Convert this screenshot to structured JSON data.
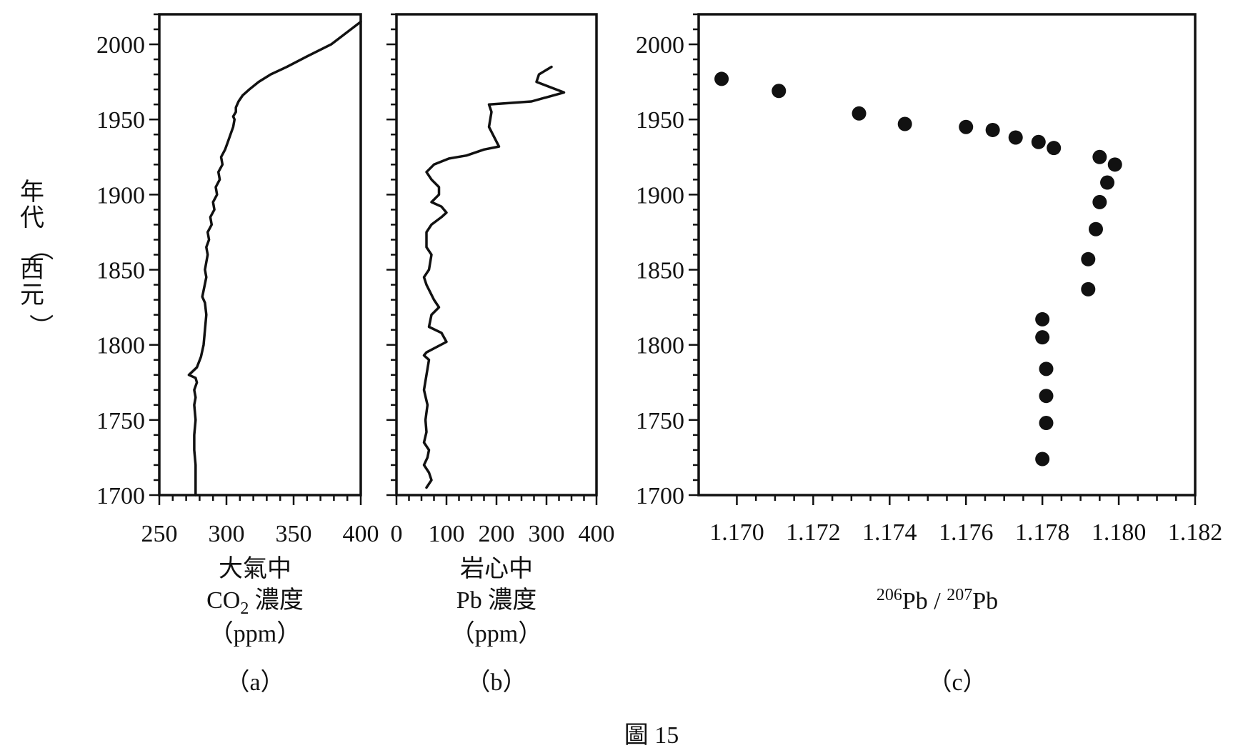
{
  "y_axis_label": "年代（西元）",
  "figure_caption": "圖 15",
  "year_ticks": [
    "1700",
    "1750",
    "1800",
    "1850",
    "1900",
    "1950",
    "2000"
  ],
  "chart_data": [
    {
      "type": "line",
      "panel_label": "（a）",
      "xlabel_lines": [
        "大氣中",
        "CO2 濃度",
        "（ppm）"
      ],
      "xlim": [
        250,
        400
      ],
      "x_ticks": [
        250,
        300,
        350,
        400
      ],
      "x_tick_labels": [
        "250",
        "300",
        "350",
        "400"
      ],
      "ylim": [
        1700,
        2020
      ],
      "grid": false,
      "series": [
        {
          "x": [
            277,
            277,
            276,
            276,
            277,
            276,
            277,
            276,
            278,
            277,
            272,
            278,
            281,
            283,
            284,
            285,
            284,
            282,
            285,
            284,
            286,
            285,
            287,
            286,
            289,
            288,
            291,
            290,
            293,
            292,
            295,
            294,
            297,
            296,
            299,
            301,
            303,
            305,
            306,
            305,
            307,
            307,
            309,
            312,
            317,
            324,
            333,
            345,
            360,
            378,
            400
          ],
          "y": [
            1700,
            1720,
            1730,
            1740,
            1750,
            1760,
            1765,
            1770,
            1775,
            1778,
            1780,
            1785,
            1792,
            1800,
            1810,
            1820,
            1828,
            1832,
            1845,
            1850,
            1860,
            1865,
            1870,
            1875,
            1880,
            1885,
            1890,
            1895,
            1900,
            1905,
            1910,
            1915,
            1920,
            1925,
            1930,
            1935,
            1940,
            1945,
            1950,
            1952,
            1955,
            1958,
            1962,
            1966,
            1970,
            1975,
            1980,
            1985,
            1992,
            2000,
            2015
          ]
        }
      ]
    },
    {
      "type": "line",
      "panel_label": "（b）",
      "xlabel_lines": [
        "岩心中",
        "Pb 濃度",
        "（ppm）"
      ],
      "xlim": [
        0,
        400
      ],
      "x_ticks": [
        0,
        100,
        200,
        300,
        400
      ],
      "x_tick_labels": [
        "0",
        "100",
        "200",
        "300",
        "400"
      ],
      "ylim": [
        1700,
        2020
      ],
      "grid": false,
      "series": [
        {
          "x": [
            60,
            70,
            65,
            55,
            62,
            65,
            55,
            60,
            58,
            62,
            55,
            60,
            65,
            55,
            60,
            100,
            90,
            65,
            70,
            85,
            75,
            60,
            55,
            65,
            70,
            60,
            60,
            60,
            70,
            90,
            100,
            90,
            70,
            85,
            85,
            70,
            60,
            75,
            105,
            140,
            175,
            205,
            185,
            190,
            185,
            270,
            335,
            280,
            285,
            310
          ],
          "y": [
            1705,
            1710,
            1715,
            1720,
            1725,
            1730,
            1735,
            1742,
            1750,
            1760,
            1770,
            1780,
            1790,
            1793,
            1795,
            1802,
            1808,
            1812,
            1820,
            1825,
            1830,
            1840,
            1845,
            1850,
            1860,
            1865,
            1870,
            1875,
            1880,
            1885,
            1888,
            1892,
            1895,
            1900,
            1905,
            1910,
            1915,
            1920,
            1924,
            1926,
            1930,
            1932,
            1945,
            1955,
            1960,
            1962,
            1968,
            1975,
            1980,
            1985
          ]
        }
      ]
    },
    {
      "type": "scatter",
      "panel_label": "（c）",
      "xlabel_parts": {
        "sup1": "206",
        "base1": "Pb / ",
        "sup2": "207",
        "base2": "Pb"
      },
      "xlim": [
        1.169,
        1.182
      ],
      "x_ticks": [
        1.17,
        1.172,
        1.174,
        1.176,
        1.178,
        1.18,
        1.182
      ],
      "x_tick_labels": [
        "1.170",
        "1.172",
        "1.174",
        "1.176",
        "1.178",
        "1.180",
        "1.182"
      ],
      "ylim": [
        1700,
        2020
      ],
      "grid": false,
      "series": [
        {
          "x": [
            1.1696,
            1.1711,
            1.1732,
            1.1744,
            1.176,
            1.1767,
            1.1773,
            1.1779,
            1.1783,
            1.1795,
            1.1799,
            1.1797,
            1.1795,
            1.1794,
            1.1792,
            1.1792,
            1.178,
            1.178,
            1.1781,
            1.1781,
            1.1781,
            1.178
          ],
          "y": [
            1977,
            1969,
            1954,
            1947,
            1945,
            1943,
            1938,
            1935,
            1931,
            1925,
            1920,
            1908,
            1895,
            1877,
            1857,
            1837,
            1817,
            1805,
            1784,
            1766,
            1748,
            1724
          ]
        }
      ]
    }
  ]
}
